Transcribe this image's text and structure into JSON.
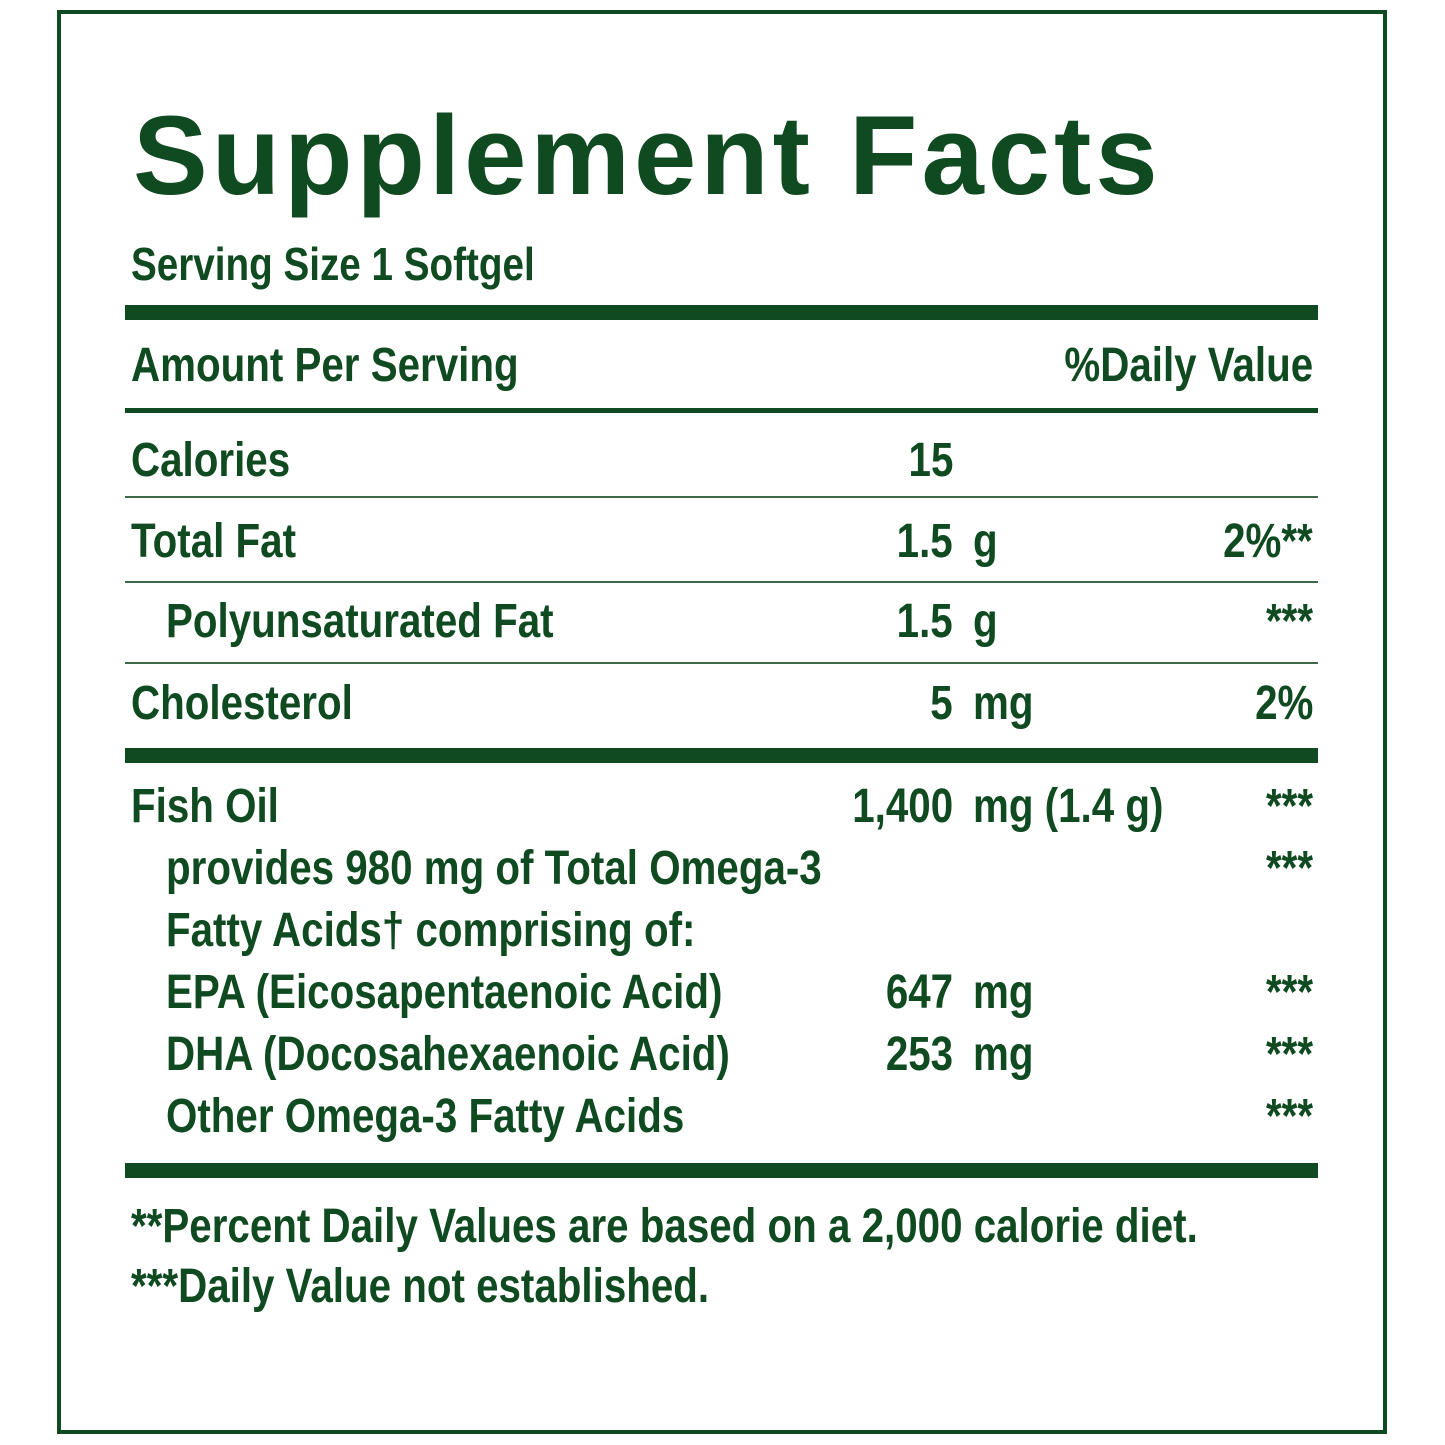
{
  "title": "Supplement Facts",
  "serving_size": "Serving Size 1 Softgel",
  "header": {
    "amount_label": "Amount Per Serving",
    "dv_label": "%Daily Value"
  },
  "rows": [
    {
      "name": "Calories",
      "amount": "15",
      "unit": "",
      "dv": ""
    },
    {
      "name": "Total Fat",
      "amount": "1.5",
      "unit": "g",
      "dv": "2%**"
    },
    {
      "name": "Polyunsaturated Fat",
      "amount": "1.5",
      "unit": "g",
      "dv": "***"
    },
    {
      "name": "Cholesterol",
      "amount": "5",
      "unit": "mg",
      "dv": "2%"
    }
  ],
  "fish_oil": {
    "name": "Fish Oil",
    "amount": "1,400",
    "unit": "mg (1.4 g)",
    "dv": "***",
    "provides_line1": "provides 980 mg of Total Omega-3",
    "provides_line2": "Fatty Acids† comprising of:",
    "provides_dv": "***",
    "components": [
      {
        "name": "EPA (Eicosapentaenoic Acid)",
        "amount": "647",
        "unit": "mg",
        "dv": "***"
      },
      {
        "name": "DHA (Docosahexaenoic Acid)",
        "amount": "253",
        "unit": "mg",
        "dv": "***"
      },
      {
        "name": "Other Omega-3 Fatty Acids",
        "amount": "",
        "unit": "",
        "dv": "***"
      }
    ]
  },
  "footnotes": [
    "**Percent Daily Values are based on a 2,000 calorie diet.",
    "***Daily Value not established."
  ],
  "colors": {
    "label_green": "#0f4a20"
  }
}
